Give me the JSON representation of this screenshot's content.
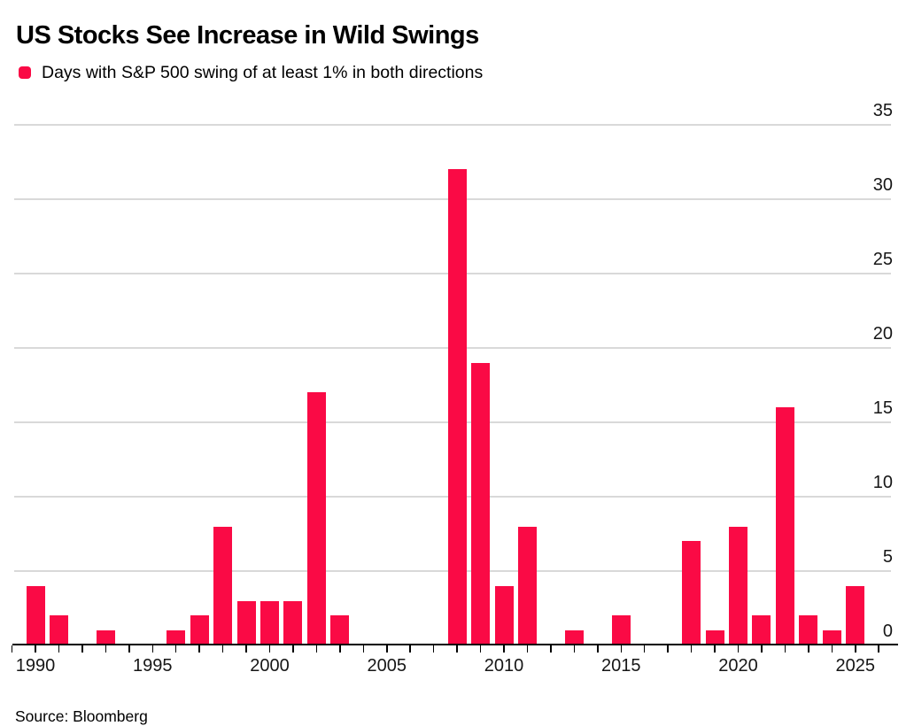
{
  "header": {
    "title": "US Stocks See Increase in Wild Swings",
    "legend_label": "Days with S&P 500 swing of at least 1% in both directions"
  },
  "footer": {
    "source": "Source: Bloomberg"
  },
  "colors": {
    "bar": "#fa0a45",
    "gridline": "#d9d9d9",
    "axis": "#000000",
    "text": "#161616"
  },
  "chart_data": {
    "type": "bar",
    "title": "US Stocks See Increase in Wild Swings",
    "legend": [
      "Days with S&P 500 swing of at least 1% in both directions"
    ],
    "legend_position": "top-left",
    "categories": [
      1990,
      1991,
      1992,
      1993,
      1994,
      1995,
      1996,
      1997,
      1998,
      1999,
      2000,
      2001,
      2002,
      2003,
      2004,
      2005,
      2006,
      2007,
      2008,
      2009,
      2010,
      2011,
      2012,
      2013,
      2014,
      2015,
      2016,
      2017,
      2018,
      2019,
      2020,
      2021,
      2022,
      2023,
      2024,
      2025
    ],
    "values": [
      4,
      2,
      0,
      1,
      0,
      0,
      1,
      2,
      8,
      3,
      3,
      3,
      17,
      2,
      0,
      0,
      0,
      0,
      32,
      19,
      4,
      8,
      0,
      1,
      0,
      2,
      0,
      0,
      7,
      1,
      8,
      2,
      16,
      2,
      1,
      4
    ],
    "xlabel": "",
    "ylabel": "",
    "ylim": [
      0,
      35
    ],
    "yticks": [
      0,
      5,
      10,
      15,
      20,
      25,
      30,
      35
    ],
    "xticklabels": [
      "1990",
      "1995",
      "2000",
      "2005",
      "2010",
      "2015",
      "2020",
      "2025"
    ],
    "grid": "horizontal",
    "y_axis_side": "right",
    "bar_color": "#fa0a45",
    "source": "Source: Bloomberg"
  }
}
